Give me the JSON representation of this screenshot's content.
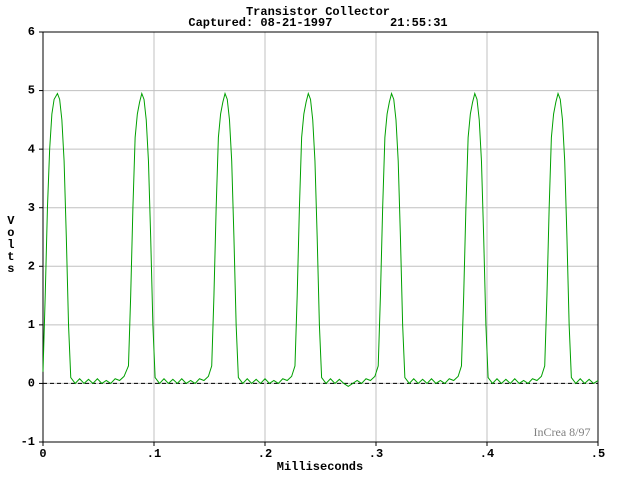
{
  "chart_data": {
    "type": "line",
    "title": "Transistor Collector",
    "subtitle": "Captured: 08-21-1997        21:55:31",
    "x_label": "Milliseconds",
    "y_label": "Volts",
    "annotation": "InCrea 8/97",
    "xlim": [
      0,
      0.5
    ],
    "ylim": [
      -1,
      6
    ],
    "xticks": [
      0,
      {
        "value": 0.1,
        "label": ".1"
      },
      {
        "value": 0.2,
        "label": ".2"
      },
      {
        "value": 0.3,
        "label": ".3"
      },
      {
        "value": 0.4,
        "label": ".4"
      },
      {
        "value": 0.5,
        "label": ".5"
      }
    ],
    "yticks": [
      -1,
      0,
      1,
      2,
      3,
      4,
      5,
      6
    ],
    "grid": true,
    "reference_line": {
      "value": 0,
      "style": "dashed"
    },
    "x": [
      0,
      0.002,
      0.004,
      0.006,
      0.008,
      0.01,
      0.013,
      0.015,
      0.017,
      0.019,
      0.021,
      0.023,
      0.025,
      0.029,
      0.033,
      0.037,
      0.041,
      0.045,
      0.049,
      0.053,
      0.057,
      0.061,
      0.065,
      0.069,
      0.073,
      0.077,
      0.079,
      0.081,
      0.083,
      0.085,
      0.087,
      0.089,
      0.091,
      0.093,
      0.095,
      0.097,
      0.099,
      0.101,
      0.105,
      0.109,
      0.113,
      0.117,
      0.121,
      0.125,
      0.129,
      0.133,
      0.137,
      0.141,
      0.145,
      0.149,
      0.152,
      0.154,
      0.156,
      0.158,
      0.16,
      0.162,
      0.164,
      0.166,
      0.168,
      0.17,
      0.172,
      0.174,
      0.176,
      0.18,
      0.184,
      0.188,
      0.192,
      0.196,
      0.2,
      0.204,
      0.208,
      0.212,
      0.216,
      0.22,
      0.224,
      0.227,
      0.229,
      0.231,
      0.233,
      0.235,
      0.237,
      0.239,
      0.241,
      0.243,
      0.245,
      0.247,
      0.249,
      0.251,
      0.255,
      0.259,
      0.263,
      0.267,
      0.271,
      0.275,
      0.279,
      0.283,
      0.287,
      0.291,
      0.295,
      0.299,
      0.302,
      0.304,
      0.306,
      0.308,
      0.31,
      0.312,
      0.314,
      0.316,
      0.318,
      0.32,
      0.322,
      0.324,
      0.326,
      0.33,
      0.334,
      0.338,
      0.342,
      0.346,
      0.35,
      0.354,
      0.358,
      0.362,
      0.366,
      0.37,
      0.374,
      0.377,
      0.379,
      0.381,
      0.383,
      0.385,
      0.387,
      0.389,
      0.391,
      0.393,
      0.395,
      0.397,
      0.399,
      0.401,
      0.405,
      0.409,
      0.413,
      0.417,
      0.421,
      0.425,
      0.429,
      0.433,
      0.437,
      0.441,
      0.445,
      0.449,
      0.452,
      0.454,
      0.456,
      0.458,
      0.46,
      0.462,
      0.464,
      0.466,
      0.468,
      0.47,
      0.472,
      0.474,
      0.476,
      0.48,
      0.484,
      0.488,
      0.492,
      0.496,
      0.5
    ],
    "series": [
      {
        "name": "Collector",
        "color": "#00a000",
        "values": [
          0.2,
          1.5,
          3.0,
          4.0,
          4.6,
          4.85,
          4.95,
          4.85,
          4.5,
          3.8,
          2.5,
          1.0,
          0.1,
          0,
          0.08,
          0,
          0.07,
          0,
          0.08,
          0,
          0.05,
          0,
          0.08,
          0.05,
          0.12,
          0.3,
          1.5,
          3.0,
          4.2,
          4.6,
          4.8,
          4.95,
          4.85,
          4.5,
          3.8,
          2.5,
          1.0,
          0.1,
          0,
          0.08,
          0,
          0.07,
          0,
          0.08,
          0,
          0.05,
          0,
          0.08,
          0.05,
          0.12,
          0.3,
          1.5,
          3.0,
          4.2,
          4.6,
          4.8,
          4.95,
          4.85,
          4.5,
          3.8,
          2.5,
          1.0,
          0.1,
          0,
          0.08,
          0,
          0.07,
          0,
          0.08,
          0,
          0.05,
          0,
          0.08,
          0.05,
          0.12,
          0.3,
          1.5,
          3.0,
          4.2,
          4.6,
          4.8,
          4.95,
          4.85,
          4.5,
          3.8,
          2.5,
          1.0,
          0.1,
          0,
          0.08,
          0,
          0.07,
          0,
          -0.05,
          0,
          0.05,
          0,
          0.08,
          0.05,
          0.12,
          0.3,
          1.5,
          3.0,
          4.2,
          4.6,
          4.8,
          4.95,
          4.85,
          4.5,
          3.8,
          2.5,
          1.0,
          0.1,
          0,
          0.08,
          0,
          0.07,
          0,
          0.08,
          0,
          0.05,
          0,
          0.08,
          0.05,
          0.12,
          0.3,
          1.5,
          3.0,
          4.2,
          4.6,
          4.8,
          4.95,
          4.85,
          4.5,
          3.8,
          2.5,
          1.0,
          0.1,
          0,
          0.08,
          0,
          0.07,
          0,
          0.08,
          0,
          0.05,
          0,
          0.08,
          0.05,
          0.12,
          0.3,
          1.5,
          3.0,
          4.2,
          4.6,
          4.8,
          4.95,
          4.85,
          4.5,
          3.8,
          2.5,
          1.0,
          0.1,
          0,
          0.08,
          0,
          0.07,
          0,
          0.05
        ]
      }
    ]
  }
}
